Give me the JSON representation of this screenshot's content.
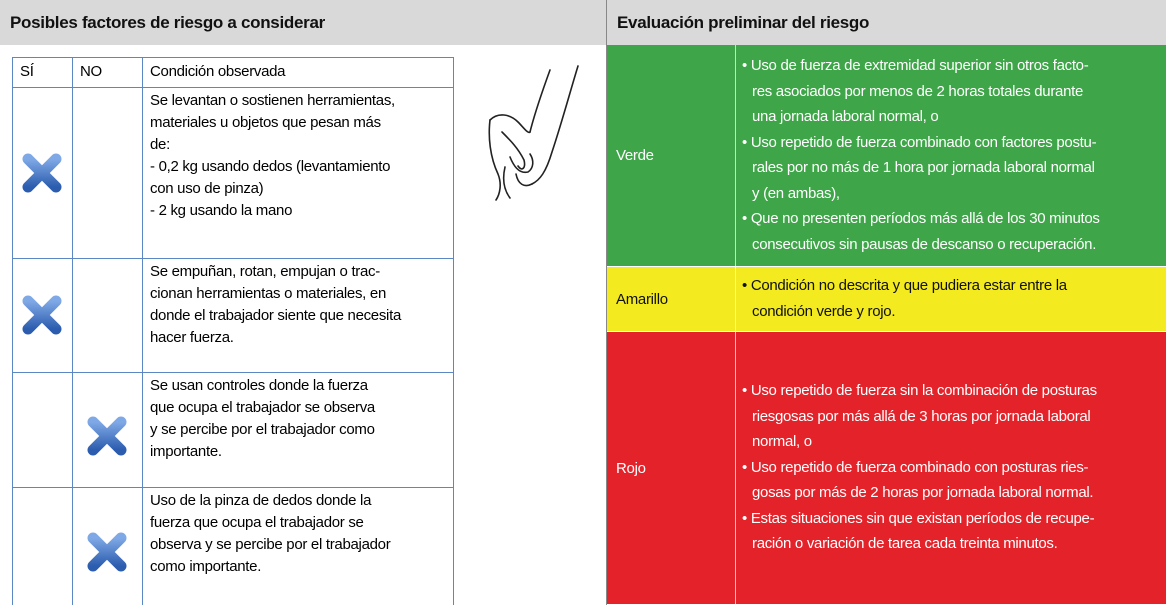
{
  "left": {
    "title": "Posibles factores de riesgo a considerar",
    "columns": [
      "SÍ",
      "NO",
      "Condición observada"
    ],
    "rows": [
      {
        "si": true,
        "no": false,
        "lines": [
          "Se levantan o sostienen herramientas,",
          "materiales u objetos que pesan más",
          "de:",
          "- 0,2 kg usando dedos (levantamiento",
          "con uso de pinza)",
          "- 2 kg usando la mano"
        ]
      },
      {
        "si": true,
        "no": false,
        "lines": [
          "Se empuñan, rotan, empujan o trac-",
          "cionan herramientas o materiales, en",
          "donde el trabajador siente que necesita",
          "hacer fuerza."
        ]
      },
      {
        "si": false,
        "no": true,
        "lines": [
          "Se usan controles donde la fuerza",
          "que ocupa el trabajador se observa",
          "y se percibe por el trabajador como",
          "importante."
        ]
      },
      {
        "si": false,
        "no": true,
        "lines": [
          "Uso de la pinza de dedos donde la",
          "fuerza que ocupa el trabajador se",
          "observa y se percibe por el trabajador",
          "como importante."
        ]
      }
    ]
  },
  "right": {
    "title": "Evaluación preliminar del riesgo",
    "levels": [
      {
        "label": "Verde",
        "color": "#3ea548",
        "text_color": "#ffffff",
        "lines": [
          "• Uso de fuerza de extremidad superior sin otros facto-",
          "res asociados por menos de 2 horas totales durante",
          "una jornada laboral normal, o",
          "• Uso repetido de fuerza combinado con factores postu-",
          "rales por no más de 1 hora por jornada laboral normal",
          "y (en ambas),",
          "• Que no presenten períodos más allá de los 30 minutos",
          "consecutivos sin pausas de descanso o recuperación."
        ]
      },
      {
        "label": "Amarillo",
        "color": "#f3ea1f",
        "text_color": "#111111",
        "lines": [
          "• Condición no descrita y que pudiera estar entre la",
          "condición verde y rojo."
        ]
      },
      {
        "label": "Rojo",
        "color": "#e3222a",
        "text_color": "#ffffff",
        "lines": [
          "• Uso repetido de fuerza sin la combinación de posturas",
          "riesgosas por más allá de 3 horas por jornada laboral",
          "normal, o",
          "• Uso repetido de fuerza combinado con posturas ries-",
          "gosas por más de 2 horas por jornada laboral normal.",
          "• Estas situaciones sin que existan períodos de recupe-",
          "ración o variación de tarea cada treinta minutos."
        ]
      }
    ]
  }
}
